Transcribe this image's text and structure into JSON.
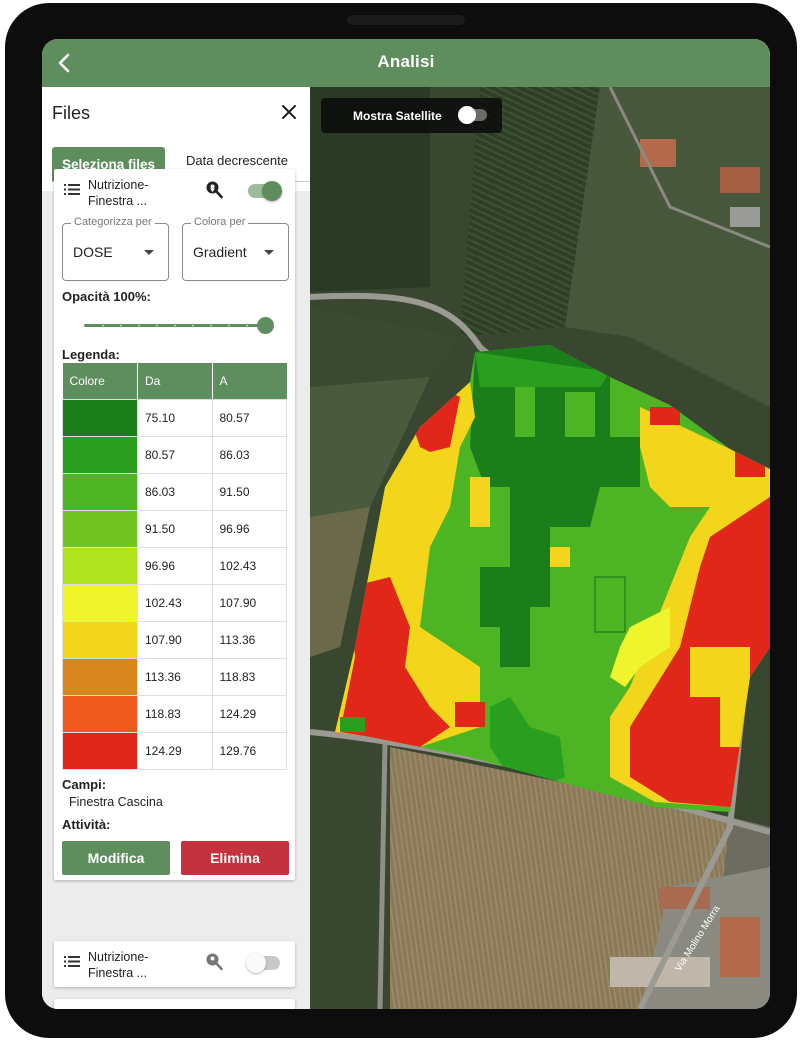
{
  "header": {
    "title": "Analisi"
  },
  "panel": {
    "title": "Files",
    "tabs": [
      {
        "label": "Seleziona files",
        "active": true
      },
      {
        "label": "Data decrescente",
        "active": false
      }
    ]
  },
  "layers": [
    {
      "name": "Nutrizione-Finestra ...",
      "visible": true,
      "categorize": {
        "label": "Categorizza per",
        "value": "DOSE"
      },
      "color_by": {
        "label": "Colora per",
        "value": "Gradient"
      },
      "opacity_label": "Opacità 100%:",
      "opacity": 1.0,
      "legend_title": "Legenda:",
      "legend_headers": {
        "color": "Colore",
        "from": "Da",
        "to": "A"
      },
      "legend": [
        {
          "color": "#1a7e1a",
          "from": "75.10",
          "to": "80.57"
        },
        {
          "color": "#2a9e1e",
          "from": "80.57",
          "to": "86.03"
        },
        {
          "color": "#4db524",
          "from": "86.03",
          "to": "91.50"
        },
        {
          "color": "#72c521",
          "from": "91.50",
          "to": "96.96"
        },
        {
          "color": "#b0e21e",
          "from": "96.96",
          "to": "102.43"
        },
        {
          "color": "#eef52c",
          "from": "102.43",
          "to": "107.90"
        },
        {
          "color": "#f3d51c",
          "from": "107.90",
          "to": "113.36"
        },
        {
          "color": "#d8861e",
          "from": "113.36",
          "to": "118.83"
        },
        {
          "color": "#ef5b1f",
          "from": "118.83",
          "to": "124.29"
        },
        {
          "color": "#e0271a",
          "from": "124.29",
          "to": "129.76"
        }
      ],
      "fields_label": "Campi:",
      "fields_value": "Finestra Cascina",
      "activity_label": "Attività:",
      "edit_label": "Modifica",
      "delete_label": "Elimina"
    },
    {
      "name": "Nutrizione-Finestra ...",
      "visible": false
    }
  ],
  "map": {
    "satellite_label": "Mostra Satellite",
    "satellite_on": false,
    "road_label": "Via Molino Morra"
  },
  "colors": {
    "primary": "#5e8e5e",
    "danger": "#c4323f"
  }
}
